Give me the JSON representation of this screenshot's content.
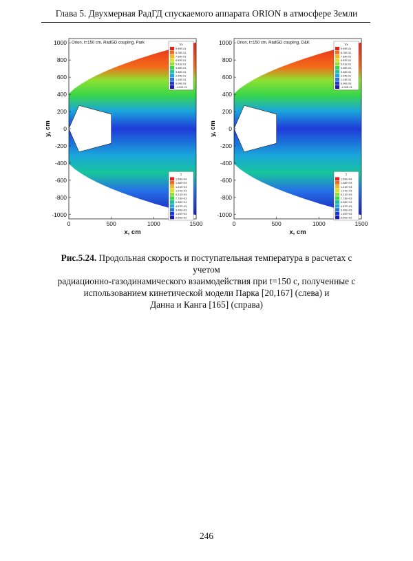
{
  "header": {
    "title": "Глава 5. Двухмерная РадГД спускаемого аппарата ORION в атмосфере Земли"
  },
  "figure": {
    "panels": [
      {
        "title": "Orion, t=150 cm, RadGD coupling, Park",
        "velocity_legend": {
          "title": "Vx",
          "values": [
            "9.99E-01",
            "8.75E-01",
            "7.64E-01",
            "6.52E-01",
            "5.41E-01",
            "4.46E-01",
            "3.35E-01",
            "2.24E-01",
            "1.13E-01",
            "6.00E-03",
            "-1.00E-01"
          ]
        },
        "temperature_legend": {
          "title": "T",
          "values": [
            "1.59E+04",
            "1.38E+04",
            "1.21E+04",
            "1.07E+04",
            "9.21E+03",
            "7.73E+03",
            "6.35E+03",
            "4.87E+03",
            "3.40E+03",
            "1.92E+03",
            "5.00E+02"
          ]
        }
      },
      {
        "title": "Orion, t=150 cm, RadGD coupling, D&K",
        "velocity_legend": {
          "title": "Vx",
          "values": [
            "9.99E-01",
            "8.75E-01",
            "7.64E-01",
            "6.52E-01",
            "5.41E-01",
            "4.46E-01",
            "3.35E-01",
            "2.24E-01",
            "1.13E-01",
            "6.00E-03",
            "-1.00E-01"
          ]
        },
        "temperature_legend": {
          "title": "T",
          "values": [
            "1.59E+04",
            "1.38E+04",
            "1.21E+04",
            "1.07E+04",
            "9.21E+03",
            "7.73E+03",
            "6.35E+03",
            "4.87E+03",
            "3.40E+03",
            "1.92E+03",
            "5.00E+02"
          ]
        }
      }
    ],
    "y_ticks": [
      "1000",
      "800",
      "600",
      "400",
      "200",
      "0",
      "-200",
      "-400",
      "-600",
      "-800",
      "-1000"
    ],
    "x_ticks": [
      "0",
      "500",
      "1000",
      "1500"
    ],
    "x_label": "x, cm",
    "y_label": "y, cm",
    "colors": [
      "#e8201d",
      "#f36a1a",
      "#f7b41b",
      "#d9e321",
      "#8fe030",
      "#39d64a",
      "#18c59c",
      "#1aa6db",
      "#2571e6",
      "#1f3ad9",
      "#1a19b8"
    ]
  },
  "caption": {
    "label": "Рис.5.24.",
    "line1": "Продольная скорость и поступательная температура в расчетах с учетом",
    "line2": "радиационно-газодинамического взаимодействия при t=150 с, полученные с",
    "line3": "использованием кинетической модели Парка [20,167] (слева) и",
    "line4": "Данна и Канга [165] (справа)"
  },
  "page_number": "246"
}
